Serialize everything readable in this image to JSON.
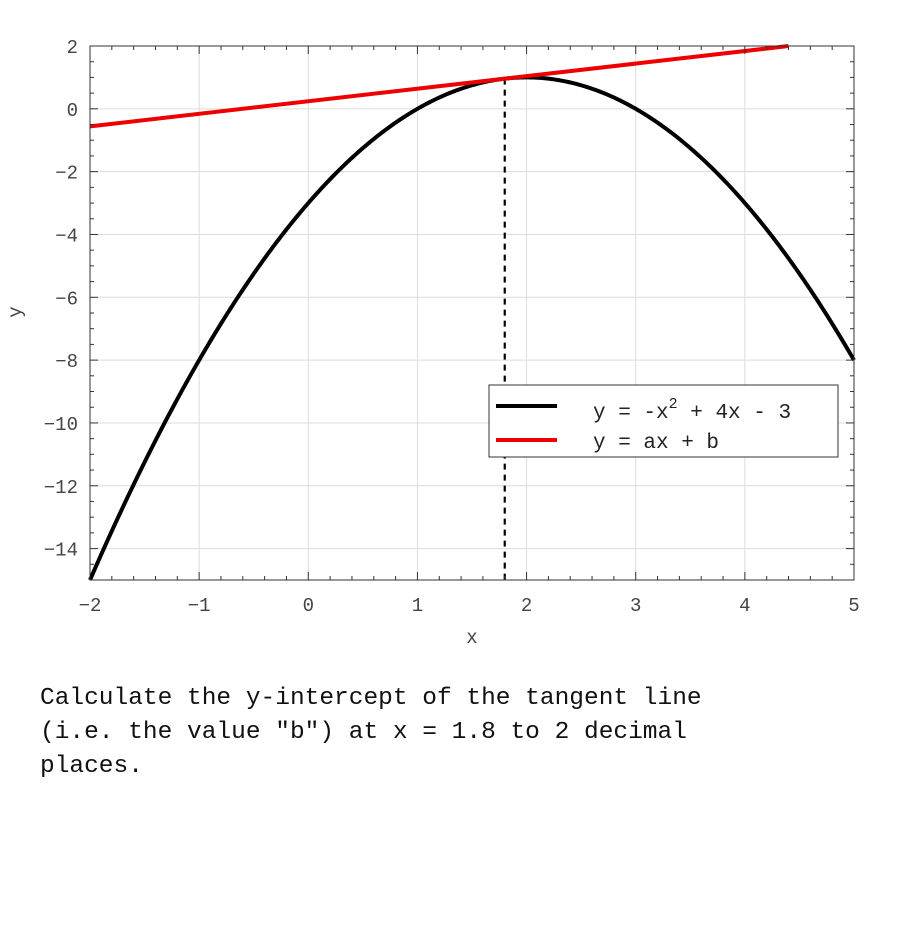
{
  "chart_data": {
    "type": "line",
    "xlabel": "x",
    "ylabel": "y",
    "xlim": [
      -2,
      5
    ],
    "ylim": [
      -15,
      2
    ],
    "xticks": [
      -2,
      -1,
      0,
      1,
      2,
      3,
      4,
      5
    ],
    "yticks": [
      2,
      0,
      -2,
      -4,
      -6,
      -8,
      -10,
      -12,
      -14
    ],
    "grid": true,
    "legend_position": "lower-right",
    "series": [
      {
        "name_parts": {
          "before": "y = -x",
          "sup": "2",
          "after": " + 4x - 3"
        },
        "color": "#000000",
        "style": "solid",
        "function": "parabola",
        "coefficients": {
          "a": -1,
          "b": 4,
          "c": -3
        },
        "x_range": [
          -2,
          5
        ]
      },
      {
        "name": "y = ax + b",
        "color": "#ee0000",
        "style": "solid",
        "function": "tangent-line",
        "x_range": [
          -2,
          4.4
        ]
      }
    ],
    "reference_line": {
      "orientation": "vertical",
      "x": 1.8,
      "style": "dashed",
      "color": "#000000"
    }
  },
  "question": "Calculate the y-intercept of the tangent line\n(i.e. the value \"b\") at x = 1.8 to 2 decimal\nplaces."
}
